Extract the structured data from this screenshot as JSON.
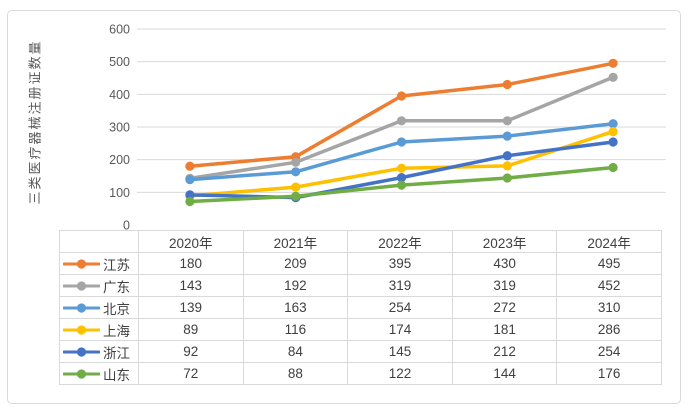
{
  "chart_data": {
    "type": "line",
    "title": "",
    "xlabel": "",
    "ylabel": "三类医疗器械注册证数量",
    "categories": [
      "2020年",
      "2021年",
      "2022年",
      "2023年",
      "2024年"
    ],
    "series": [
      {
        "name": "江苏",
        "color": "#ED7D31",
        "values": [
          180,
          209,
          395,
          430,
          495
        ]
      },
      {
        "name": "广东",
        "color": "#A5A5A5",
        "values": [
          143,
          192,
          319,
          319,
          452
        ]
      },
      {
        "name": "北京",
        "color": "#5B9BD5",
        "values": [
          139,
          163,
          254,
          272,
          310
        ]
      },
      {
        "name": "上海",
        "color": "#FFC000",
        "values": [
          89,
          116,
          174,
          181,
          286
        ]
      },
      {
        "name": "浙江",
        "color": "#4472C4",
        "values": [
          92,
          84,
          145,
          212,
          254
        ]
      },
      {
        "name": "山东",
        "color": "#70AD47",
        "values": [
          72,
          88,
          122,
          144,
          176
        ]
      }
    ],
    "ylim": [
      0,
      600
    ],
    "yticks": [
      0,
      100,
      200,
      300,
      400,
      500,
      600
    ],
    "grid": true,
    "legend_position": "data-table-left",
    "data_table": true
  },
  "colors": {
    "grid": "#D9D9D9",
    "axis_text": "#595959",
    "table_text": "#404040",
    "table_border": "#D9D9D9",
    "frame_border": "#D9D9D9",
    "background": "#FFFFFF"
  }
}
